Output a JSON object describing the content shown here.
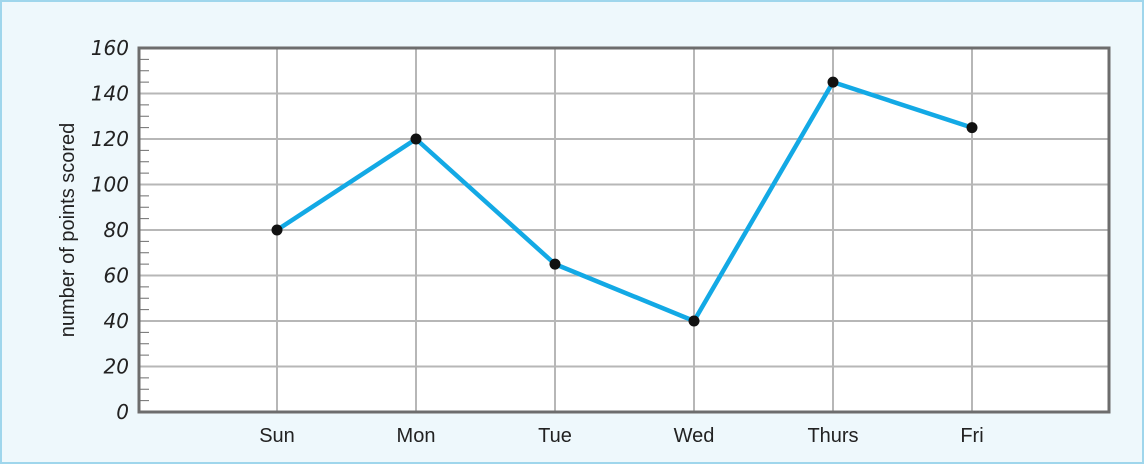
{
  "chart_data": {
    "type": "line",
    "categories": [
      "Sun",
      "Mon",
      "Tue",
      "Wed",
      "Thurs",
      "Fri"
    ],
    "values": [
      80,
      120,
      65,
      40,
      145,
      125
    ],
    "title": "",
    "xlabel": "",
    "ylabel": "number of points scored",
    "ylim": [
      0,
      160
    ],
    "yticks": [
      "0",
      "20",
      "40",
      "60",
      "80",
      "100",
      "120",
      "140",
      "160"
    ],
    "grid": true,
    "colors": {
      "line": "#13a9e5",
      "marker": "#111111",
      "grid": "#b7b7b7",
      "axis": "#6d6d6d",
      "plot_background": "#ffffff",
      "frame_border": "#9fd6ec",
      "frame_background": "#eef8fc"
    }
  }
}
